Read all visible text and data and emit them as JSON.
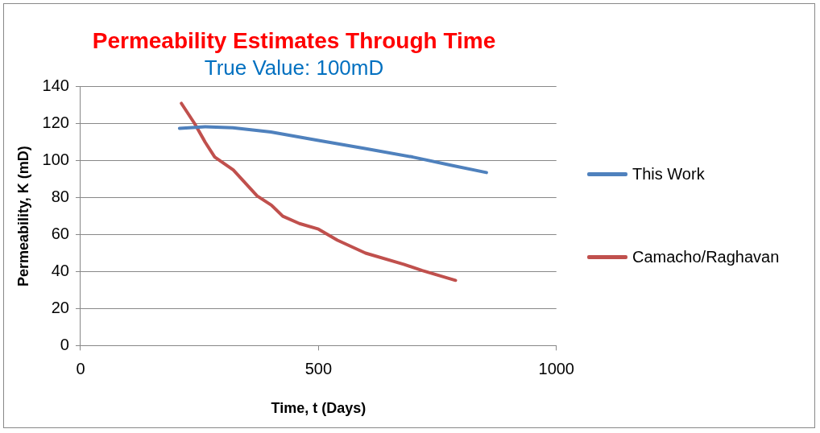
{
  "chart_data": {
    "type": "line",
    "title": "Permeability Estimates Through Time",
    "subtitle": "True Value: 100mD",
    "xlabel": "Time, t (Days)",
    "ylabel": "Permeability, K (mD)",
    "xlim": [
      0,
      1000
    ],
    "xticks": [
      0,
      500,
      1000
    ],
    "ylim": [
      0,
      140
    ],
    "yticks": [
      0,
      20,
      40,
      60,
      80,
      100,
      120,
      140
    ],
    "grid": "y",
    "legend": "right",
    "marker": "none",
    "series": [
      {
        "name": "This Work",
        "color": "#4f81bd",
        "x": [
          208,
          262,
          320,
          400,
          500,
          600,
          698,
          780,
          853
        ],
        "values": [
          117.5,
          118.4,
          117.8,
          115.5,
          111,
          106.5,
          102,
          97.5,
          93.6
        ]
      },
      {
        "name": "Camacho/Raghavan",
        "color": "#c0504d",
        "x": [
          212,
          240,
          262,
          282,
          321,
          371,
          401,
          425,
          460,
          500,
          540,
          599,
          679,
          718,
          788
        ],
        "values": [
          131,
          120,
          110,
          102,
          95,
          81,
          76,
          70,
          66,
          63,
          57,
          50,
          44,
          40.6,
          35.3
        ]
      }
    ]
  }
}
